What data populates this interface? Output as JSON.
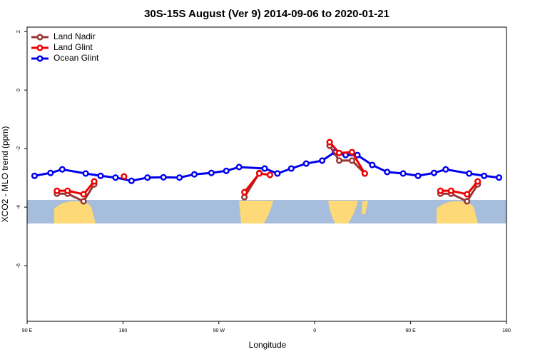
{
  "chart_data": {
    "type": "line",
    "title": "30S-15S August (Ver 9)   2014-09-06 to 2020-01-21",
    "xlabel": "Longitude",
    "ylabel": "XCO2 - MLO trend (ppm)",
    "xlim": [
      90,
      540
    ],
    "ylim": [
      -7.9,
      2.15
    ],
    "xticks": [
      {
        "value": 90,
        "label": "90 E"
      },
      180,
      {
        "value": 270,
        "label": "90 W"
      },
      {
        "value": 360,
        "label": "0"
      },
      {
        "value": 450,
        "label": "90 E"
      },
      {
        "value": 540,
        "label": "180"
      }
    ],
    "yticks": [
      -6,
      -4,
      -2,
      0,
      2
    ],
    "legend": "top-left",
    "series": [
      {
        "name": "Ocean Glint",
        "color": "#0000ee",
        "x": [
          97,
          112,
          123,
          145,
          159,
          173,
          188,
          203,
          218,
          233,
          247,
          263,
          277,
          289,
          313,
          325,
          338,
          352,
          367,
          379,
          389,
          400,
          414,
          428,
          443,
          457,
          472,
          483,
          505,
          519,
          533
        ],
        "values": [
          -2.93,
          -2.83,
          -2.71,
          -2.85,
          -2.93,
          -2.99,
          -3.1,
          -2.99,
          -2.98,
          -2.99,
          -2.88,
          -2.83,
          -2.76,
          -2.63,
          -2.68,
          -2.85,
          -2.68,
          -2.51,
          -2.41,
          -2.12,
          -2.22,
          -2.22,
          -2.56,
          -2.8,
          -2.85,
          -2.93,
          -2.83,
          -2.71,
          -2.85,
          -2.93,
          -2.99
        ]
      },
      {
        "name": "Land Nadir",
        "color": "#993333",
        "x": [
          118,
          128,
          143,
          153,
          null,
          294,
          308,
          null,
          374,
          383,
          395,
          407,
          null,
          478,
          488,
          503,
          513
        ],
        "values": [
          -3.54,
          -3.54,
          -3.8,
          -3.22,
          null,
          -3.66,
          -2.83,
          null,
          -1.9,
          -2.41,
          -2.41,
          -2.85,
          null,
          -3.54,
          -3.54,
          -3.8,
          -3.22
        ]
      },
      {
        "name": "Land Glint",
        "color": "#ee0000",
        "x": [
          118,
          128,
          143,
          153,
          null,
          181,
          null,
          294,
          308,
          318,
          null,
          374,
          383,
          395,
          407,
          null,
          478,
          488,
          503,
          513
        ],
        "values": [
          -3.44,
          -3.44,
          -3.56,
          -3.12,
          null,
          -2.95,
          null,
          -3.49,
          -2.85,
          -2.9,
          null,
          -1.78,
          -2.15,
          -2.12,
          -2.85,
          null,
          -3.44,
          -3.44,
          -3.56,
          -3.12
        ]
      }
    ]
  }
}
